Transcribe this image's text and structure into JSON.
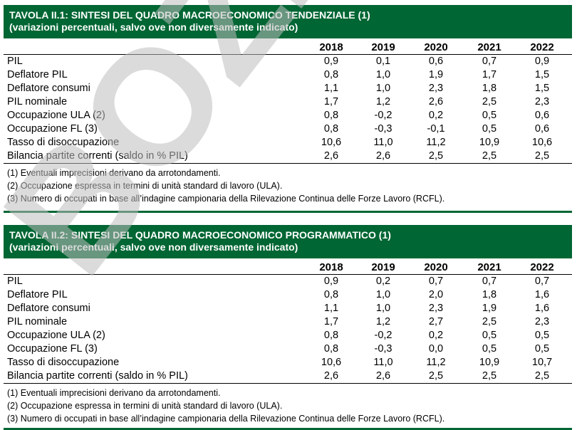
{
  "table1": {
    "title": "TAVOLA II.1: SINTESI DEL QUADRO MACROECONOMICO TENDENZIALE (1)",
    "subtitle": "(variazioni percentuali, salvo ove non diversamente indicato)",
    "years": [
      "2018",
      "2019",
      "2020",
      "2021",
      "2022"
    ],
    "rows": [
      {
        "label": "PIL",
        "values": [
          "0,9",
          "0,1",
          "0,6",
          "0,7",
          "0,9"
        ]
      },
      {
        "label": "Deflatore PIL",
        "values": [
          "0,8",
          "1,0",
          "1,9",
          "1,7",
          "1,5"
        ]
      },
      {
        "label": "Deflatore consumi",
        "values": [
          "1,1",
          "1,0",
          "2,3",
          "1,8",
          "1,5"
        ]
      },
      {
        "label": "PIL nominale",
        "values": [
          "1,7",
          "1,2",
          "2,6",
          "2,5",
          "2,3"
        ]
      },
      {
        "label": "Occupazione ULA (2)",
        "values": [
          "0,8",
          "-0,2",
          "0,2",
          "0,5",
          "0,6"
        ]
      },
      {
        "label": "Occupazione FL (3)",
        "values": [
          "0,8",
          "-0,3",
          "-0,1",
          "0,5",
          "0,6"
        ]
      },
      {
        "label": "Tasso di disoccupazione",
        "values": [
          "10,6",
          "11,0",
          "11,2",
          "10,9",
          "10,6"
        ]
      },
      {
        "label": "Bilancia partite correnti (saldo in % PIL)",
        "values": [
          "2,6",
          "2,6",
          "2,5",
          "2,5",
          "2,5"
        ]
      }
    ],
    "notes": [
      "(1) Eventuali imprecisioni derivano da arrotondamenti.",
      "(2) Occupazione espressa in termini di unità standard di lavoro (ULA).",
      "(3) Numero di occupati in base all’indagine campionaria della Rilevazione Continua delle Forze Lavoro (RCFL)."
    ]
  },
  "table2": {
    "title": "TAVOLA II.2: SINTESI DEL QUADRO MACROECONOMICO PROGRAMMATICO (1)",
    "subtitle": "(variazioni percentuali, salvo ove non diversamente indicato)",
    "years": [
      "2018",
      "2019",
      "2020",
      "2021",
      "2022"
    ],
    "rows": [
      {
        "label": "PIL",
        "values": [
          "0,9",
          "0,2",
          "0,7",
          "0,7",
          "0,7"
        ]
      },
      {
        "label": "Deflatore PIL",
        "values": [
          "0,8",
          "1,0",
          "2,0",
          "1,8",
          "1,6"
        ]
      },
      {
        "label": "Deflatore consumi",
        "values": [
          "1,1",
          "1,0",
          "2,3",
          "1,9",
          "1,6"
        ]
      },
      {
        "label": "PIL nominale",
        "values": [
          "1,7",
          "1,2",
          "2,7",
          "2,5",
          "2,3"
        ]
      },
      {
        "label": "Occupazione ULA (2)",
        "values": [
          "0,8",
          "-0,2",
          "0,2",
          "0,5",
          "0,5"
        ]
      },
      {
        "label": "Occupazione FL (3)",
        "values": [
          "0,8",
          "-0,3",
          "0,0",
          "0,5",
          "0,5"
        ]
      },
      {
        "label": "Tasso di disoccupazione",
        "values": [
          "10,6",
          "11,0",
          "11,2",
          "10,9",
          "10,7"
        ]
      },
      {
        "label": "Bilancia partite correnti (saldo in % PIL)",
        "values": [
          "2,6",
          "2,6",
          "2,5",
          "2,5",
          "2,5"
        ]
      }
    ],
    "notes": [
      "(1) Eventuali imprecisioni derivano da arrotondamenti.",
      "(2) Occupazione espressa in termini di unità standard di lavoro (ULA).",
      "(3) Numero di occupati in base all’indagine campionaria della Rilevazione Continua delle Forze Lavoro (RCFL)."
    ]
  },
  "watermark": {
    "text": "BOZZA",
    "color": "#bdbdbd"
  }
}
